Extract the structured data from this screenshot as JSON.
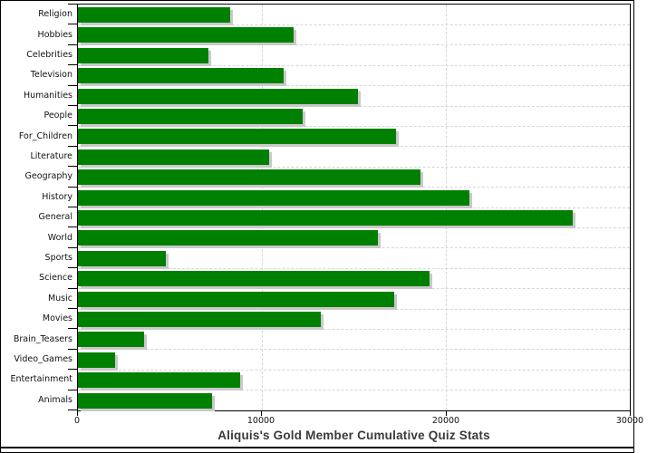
{
  "chart_data": {
    "type": "bar",
    "orientation": "horizontal",
    "title": "Aliquis's Gold Member Cumulative Quiz Stats",
    "categories": [
      "Religion",
      "Hobbies",
      "Celebrities",
      "Television",
      "Humanities",
      "People",
      "For_Children",
      "Literature",
      "Geography",
      "History",
      "General",
      "World",
      "Sports",
      "Science",
      "Music",
      "Movies",
      "Brain_Teasers",
      "Video_Games",
      "Entertainment",
      "Animals"
    ],
    "values": [
      8300,
      11700,
      7100,
      11200,
      15200,
      12200,
      17300,
      10400,
      18600,
      21300,
      26900,
      16300,
      4800,
      19100,
      17200,
      13200,
      3600,
      2000,
      8800,
      7300
    ],
    "xlabel": "",
    "ylabel": "",
    "xlim": [
      0,
      30000
    ],
    "x_ticks": [
      0,
      10000,
      20000,
      30000
    ],
    "x_tick_labels": [
      "0",
      "10000",
      "20000",
      "30000"
    ],
    "grid": "dashed",
    "legend_position": "none",
    "colors": {
      "bar": "#008000",
      "bar_shadow": "#c9c9c9",
      "gridline": "#d5d8d8",
      "axis": "#000000",
      "plot_background": "#ffffff",
      "title_text": "#3a3a3a",
      "tick_text": "#111111"
    }
  }
}
